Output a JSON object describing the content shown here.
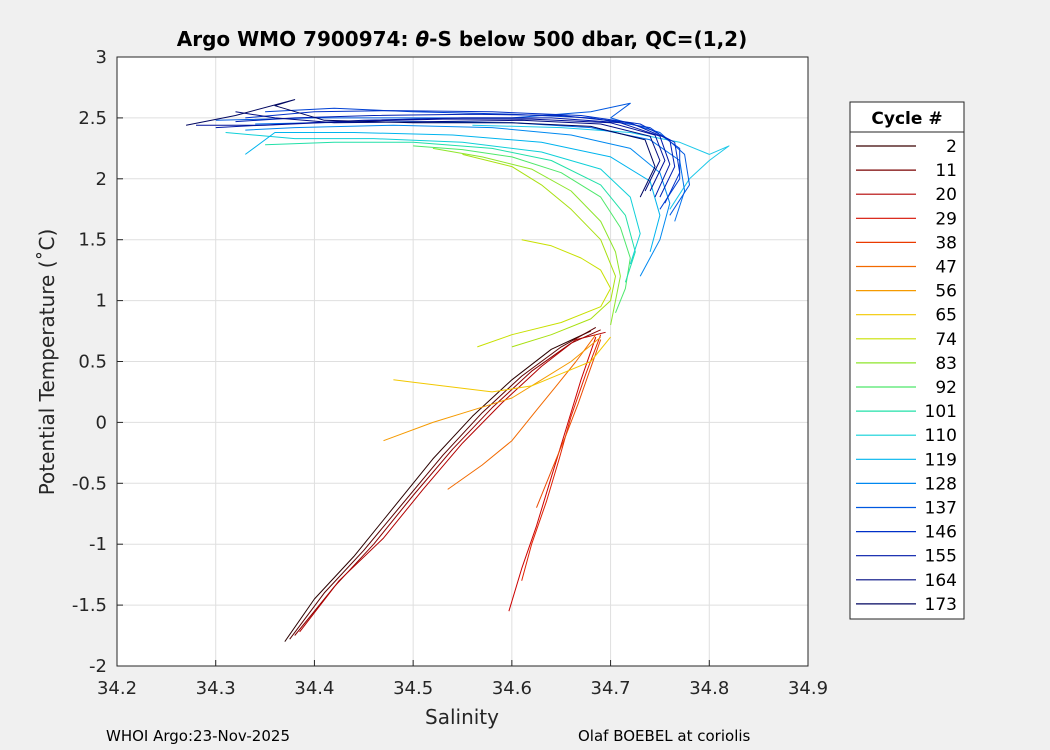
{
  "chart_data": {
    "type": "line",
    "title_prefix": "Argo WMO 7900974: ",
    "title_theta": "θ",
    "title_suffix": "-S below 500 dbar,  QC=(1,2)",
    "xlabel": "Salinity",
    "ylabel": "Potential Temperature (˚C)",
    "xlim": [
      34.2,
      34.9
    ],
    "ylim": [
      -2,
      3
    ],
    "x_ticks": [
      "34.2",
      "34.3",
      "34.4",
      "34.5",
      "34.6",
      "34.7",
      "34.8",
      "34.9"
    ],
    "y_ticks": [
      "-2",
      "-1.5",
      "-1",
      "-0.5",
      "0",
      "0.5",
      "1",
      "1.5",
      "2",
      "2.5",
      "3"
    ],
    "grid": true,
    "legend": {
      "title": "Cycle #",
      "placement": "right",
      "entries": [
        {
          "name": "2",
          "color": "#3a0000"
        },
        {
          "name": "11",
          "color": "#7a0000"
        },
        {
          "name": "20",
          "color": "#b30000"
        },
        {
          "name": "29",
          "color": "#d60f00"
        },
        {
          "name": "38",
          "color": "#ea3a00"
        },
        {
          "name": "47",
          "color": "#f26a00"
        },
        {
          "name": "56",
          "color": "#f59a00"
        },
        {
          "name": "65",
          "color": "#f2c800"
        },
        {
          "name": "74",
          "color": "#c8e000"
        },
        {
          "name": "83",
          "color": "#8ee62b"
        },
        {
          "name": "92",
          "color": "#4ee86a"
        },
        {
          "name": "101",
          "color": "#22e0a8"
        },
        {
          "name": "110",
          "color": "#0fd0d8"
        },
        {
          "name": "119",
          "color": "#00b4ee"
        },
        {
          "name": "128",
          "color": "#0088f0"
        },
        {
          "name": "137",
          "color": "#0058e0"
        },
        {
          "name": "146",
          "color": "#0030c8"
        },
        {
          "name": "155",
          "color": "#0018a8"
        },
        {
          "name": "164",
          "color": "#000c82"
        },
        {
          "name": "173",
          "color": "#000660"
        }
      ]
    },
    "series": [
      {
        "color": "#2a0000",
        "points": [
          [
            34.37,
            -1.8
          ],
          [
            34.4,
            -1.45
          ],
          [
            34.44,
            -1.1
          ],
          [
            34.48,
            -0.7
          ],
          [
            34.52,
            -0.3
          ],
          [
            34.56,
            0.05
          ],
          [
            34.6,
            0.35
          ],
          [
            34.64,
            0.6
          ],
          [
            34.68,
            0.75
          ]
        ]
      },
      {
        "color": "#5a0000",
        "points": [
          [
            34.375,
            -1.78
          ],
          [
            34.41,
            -1.4
          ],
          [
            34.45,
            -1.05
          ],
          [
            34.49,
            -0.66
          ],
          [
            34.53,
            -0.27
          ],
          [
            34.57,
            0.08
          ],
          [
            34.61,
            0.38
          ],
          [
            34.65,
            0.62
          ],
          [
            34.685,
            0.78
          ]
        ]
      },
      {
        "color": "#8a0000",
        "points": [
          [
            34.38,
            -1.75
          ],
          [
            34.42,
            -1.35
          ],
          [
            34.46,
            -1.0
          ],
          [
            34.5,
            -0.6
          ],
          [
            34.54,
            -0.22
          ],
          [
            34.58,
            0.12
          ],
          [
            34.62,
            0.42
          ],
          [
            34.66,
            0.65
          ],
          [
            34.69,
            0.76
          ]
        ]
      },
      {
        "color": "#b30000",
        "points": [
          [
            34.385,
            -1.72
          ],
          [
            34.425,
            -1.3
          ],
          [
            34.47,
            -0.95
          ],
          [
            34.51,
            -0.55
          ],
          [
            34.55,
            -0.17
          ],
          [
            34.59,
            0.16
          ],
          [
            34.63,
            0.46
          ],
          [
            34.665,
            0.68
          ],
          [
            34.695,
            0.74
          ]
        ]
      },
      {
        "color": "#cc0000",
        "points": [
          [
            34.597,
            -1.55
          ],
          [
            34.61,
            -1.2
          ],
          [
            34.625,
            -0.85
          ],
          [
            34.64,
            -0.45
          ],
          [
            34.655,
            -0.05
          ],
          [
            34.67,
            0.35
          ],
          [
            34.685,
            0.7
          ]
        ]
      },
      {
        "color": "#e02000",
        "points": [
          [
            34.61,
            -1.3
          ],
          [
            34.62,
            -1.0
          ],
          [
            34.635,
            -0.65
          ],
          [
            34.648,
            -0.3
          ],
          [
            34.66,
            0.05
          ],
          [
            34.675,
            0.4
          ],
          [
            34.69,
            0.72
          ]
        ]
      },
      {
        "color": "#ec4a00",
        "points": [
          [
            34.625,
            -0.7
          ],
          [
            34.64,
            -0.4
          ],
          [
            34.655,
            -0.1
          ],
          [
            34.667,
            0.15
          ],
          [
            34.68,
            0.45
          ],
          [
            34.69,
            0.68
          ]
        ]
      },
      {
        "color": "#f26a00",
        "points": [
          [
            34.535,
            -0.55
          ],
          [
            34.57,
            -0.35
          ],
          [
            34.6,
            -0.15
          ],
          [
            34.625,
            0.1
          ],
          [
            34.645,
            0.3
          ],
          [
            34.665,
            0.5
          ],
          [
            34.685,
            0.72
          ]
        ]
      },
      {
        "color": "#f59a00",
        "points": [
          [
            34.47,
            -0.15
          ],
          [
            34.52,
            0.0
          ],
          [
            34.56,
            0.1
          ],
          [
            34.6,
            0.2
          ],
          [
            34.63,
            0.35
          ],
          [
            34.66,
            0.5
          ],
          [
            34.69,
            0.7
          ]
        ]
      },
      {
        "color": "#f2c800",
        "points": [
          [
            34.48,
            0.35
          ],
          [
            34.53,
            0.3
          ],
          [
            34.58,
            0.25
          ],
          [
            34.62,
            0.3
          ],
          [
            34.65,
            0.4
          ],
          [
            34.68,
            0.5
          ],
          [
            34.7,
            0.7
          ]
        ]
      },
      {
        "color": "#c8e000",
        "points": [
          [
            34.565,
            0.62
          ],
          [
            34.6,
            0.72
          ],
          [
            34.65,
            0.82
          ],
          [
            34.69,
            0.95
          ],
          [
            34.7,
            1.1
          ],
          [
            34.69,
            1.25
          ],
          [
            34.67,
            1.35
          ],
          [
            34.64,
            1.45
          ],
          [
            34.61,
            1.5
          ]
        ]
      },
      {
        "color": "#a8e010",
        "points": [
          [
            34.6,
            0.62
          ],
          [
            34.64,
            0.72
          ],
          [
            34.68,
            0.85
          ],
          [
            34.7,
            1.0
          ],
          [
            34.705,
            1.2
          ],
          [
            34.69,
            1.5
          ],
          [
            34.66,
            1.75
          ],
          [
            34.63,
            1.95
          ],
          [
            34.6,
            2.1
          ],
          [
            34.55,
            2.2
          ]
        ]
      },
      {
        "color": "#8ee62b",
        "points": [
          [
            34.7,
            0.8
          ],
          [
            34.705,
            1.0
          ],
          [
            34.71,
            1.2
          ],
          [
            34.705,
            1.4
          ],
          [
            34.69,
            1.65
          ],
          [
            34.66,
            1.9
          ],
          [
            34.62,
            2.08
          ],
          [
            34.57,
            2.18
          ],
          [
            34.52,
            2.25
          ]
        ]
      },
      {
        "color": "#4ee86a",
        "points": [
          [
            34.705,
            0.9
          ],
          [
            34.715,
            1.1
          ],
          [
            34.72,
            1.35
          ],
          [
            34.71,
            1.6
          ],
          [
            34.69,
            1.85
          ],
          [
            34.65,
            2.05
          ],
          [
            34.6,
            2.18
          ],
          [
            34.55,
            2.24
          ],
          [
            34.5,
            2.27
          ]
        ]
      },
      {
        "color": "#22e0a8",
        "points": [
          [
            34.715,
            1.15
          ],
          [
            34.725,
            1.4
          ],
          [
            34.715,
            1.7
          ],
          [
            34.69,
            1.95
          ],
          [
            34.64,
            2.15
          ],
          [
            34.58,
            2.25
          ],
          [
            34.5,
            2.3
          ],
          [
            34.42,
            2.3
          ],
          [
            34.35,
            2.28
          ]
        ]
      },
      {
        "color": "#0fd0d8",
        "points": [
          [
            34.72,
            1.3
          ],
          [
            34.73,
            1.55
          ],
          [
            34.72,
            1.85
          ],
          [
            34.69,
            2.08
          ],
          [
            34.63,
            2.22
          ],
          [
            34.55,
            2.3
          ],
          [
            34.46,
            2.33
          ],
          [
            34.38,
            2.33
          ],
          [
            34.31,
            2.38
          ]
        ]
      },
      {
        "color": "#00b4ee",
        "points": [
          [
            34.74,
            1.4
          ],
          [
            34.75,
            1.7
          ],
          [
            34.74,
            1.98
          ],
          [
            34.7,
            2.18
          ],
          [
            34.63,
            2.3
          ],
          [
            34.54,
            2.36
          ],
          [
            34.44,
            2.38
          ],
          [
            34.36,
            2.38
          ],
          [
            34.33,
            2.2
          ]
        ]
      },
      {
        "color": "#1cc8e8",
        "points": [
          [
            34.76,
            1.75
          ],
          [
            34.78,
            2.0
          ],
          [
            34.8,
            2.15
          ],
          [
            34.82,
            2.27
          ],
          [
            34.8,
            2.2
          ],
          [
            34.77,
            2.3
          ],
          [
            34.72,
            2.38
          ],
          [
            34.65,
            2.42
          ],
          [
            34.56,
            2.44
          ]
        ]
      },
      {
        "color": "#0088f0",
        "points": [
          [
            34.73,
            1.2
          ],
          [
            34.75,
            1.5
          ],
          [
            34.76,
            1.8
          ],
          [
            34.75,
            2.05
          ],
          [
            34.72,
            2.25
          ],
          [
            34.66,
            2.36
          ],
          [
            34.58,
            2.42
          ],
          [
            34.48,
            2.44
          ],
          [
            34.38,
            2.42
          ],
          [
            34.33,
            2.4
          ]
        ]
      },
      {
        "color": "#0070ec",
        "points": [
          [
            34.765,
            1.65
          ],
          [
            34.775,
            1.9
          ],
          [
            34.77,
            2.15
          ],
          [
            34.74,
            2.32
          ],
          [
            34.68,
            2.42
          ],
          [
            34.6,
            2.46
          ],
          [
            34.5,
            2.47
          ],
          [
            34.4,
            2.46
          ],
          [
            34.34,
            2.45
          ]
        ]
      },
      {
        "color": "#0058e0",
        "points": [
          [
            34.76,
            1.7
          ],
          [
            34.78,
            1.95
          ],
          [
            34.775,
            2.2
          ],
          [
            34.75,
            2.38
          ],
          [
            34.7,
            2.5
          ],
          [
            34.72,
            2.62
          ],
          [
            34.68,
            2.55
          ],
          [
            34.6,
            2.5
          ],
          [
            34.5,
            2.5
          ],
          [
            34.4,
            2.5
          ],
          [
            34.3,
            2.48
          ]
        ]
      },
      {
        "color": "#0040d4",
        "points": [
          [
            34.75,
            1.75
          ],
          [
            34.77,
            2.0
          ],
          [
            34.77,
            2.25
          ],
          [
            34.74,
            2.42
          ],
          [
            34.68,
            2.5
          ],
          [
            34.6,
            2.53
          ],
          [
            34.5,
            2.55
          ],
          [
            34.42,
            2.58
          ],
          [
            34.35,
            2.55
          ]
        ]
      },
      {
        "color": "#0030c8",
        "points": [
          [
            34.755,
            1.8
          ],
          [
            34.77,
            2.05
          ],
          [
            34.765,
            2.3
          ],
          [
            34.73,
            2.45
          ],
          [
            34.67,
            2.52
          ],
          [
            34.58,
            2.55
          ],
          [
            34.48,
            2.56
          ],
          [
            34.4,
            2.55
          ],
          [
            34.33,
            2.5
          ]
        ]
      },
      {
        "color": "#0020b4",
        "points": [
          [
            34.75,
            1.85
          ],
          [
            34.765,
            2.1
          ],
          [
            34.76,
            2.32
          ],
          [
            34.72,
            2.46
          ],
          [
            34.65,
            2.52
          ],
          [
            34.56,
            2.53
          ],
          [
            34.46,
            2.52
          ],
          [
            34.38,
            2.5
          ],
          [
            34.32,
            2.47
          ]
        ]
      },
      {
        "color": "#0018a8",
        "points": [
          [
            34.745,
            1.85
          ],
          [
            34.76,
            2.12
          ],
          [
            34.75,
            2.35
          ],
          [
            34.71,
            2.46
          ],
          [
            34.64,
            2.5
          ],
          [
            34.55,
            2.5
          ],
          [
            34.45,
            2.48
          ],
          [
            34.37,
            2.45
          ],
          [
            34.3,
            2.42
          ]
        ]
      },
      {
        "color": "#00109a",
        "points": [
          [
            34.74,
            1.9
          ],
          [
            34.755,
            2.15
          ],
          [
            34.745,
            2.36
          ],
          [
            34.7,
            2.46
          ],
          [
            34.62,
            2.49
          ],
          [
            34.53,
            2.49
          ],
          [
            34.43,
            2.47
          ],
          [
            34.35,
            2.44
          ],
          [
            34.28,
            2.44
          ]
        ]
      },
      {
        "color": "#000c82",
        "points": [
          [
            34.735,
            1.9
          ],
          [
            34.75,
            2.15
          ],
          [
            34.74,
            2.35
          ],
          [
            34.69,
            2.45
          ],
          [
            34.61,
            2.48
          ],
          [
            34.52,
            2.47
          ],
          [
            34.42,
            2.46
          ],
          [
            34.36,
            2.5
          ],
          [
            34.32,
            2.55
          ]
        ]
      },
      {
        "color": "#000660",
        "points": [
          [
            34.73,
            1.85
          ],
          [
            34.745,
            2.1
          ],
          [
            34.735,
            2.32
          ],
          [
            34.68,
            2.43
          ],
          [
            34.6,
            2.46
          ],
          [
            34.5,
            2.46
          ],
          [
            34.41,
            2.48
          ],
          [
            34.36,
            2.6
          ],
          [
            34.38,
            2.65
          ],
          [
            34.32,
            2.52
          ],
          [
            34.27,
            2.44
          ]
        ]
      }
    ]
  },
  "footer": {
    "left": "WHOI Argo:23-Nov-2025",
    "right": "Olaf BOEBEL at coriolis"
  }
}
